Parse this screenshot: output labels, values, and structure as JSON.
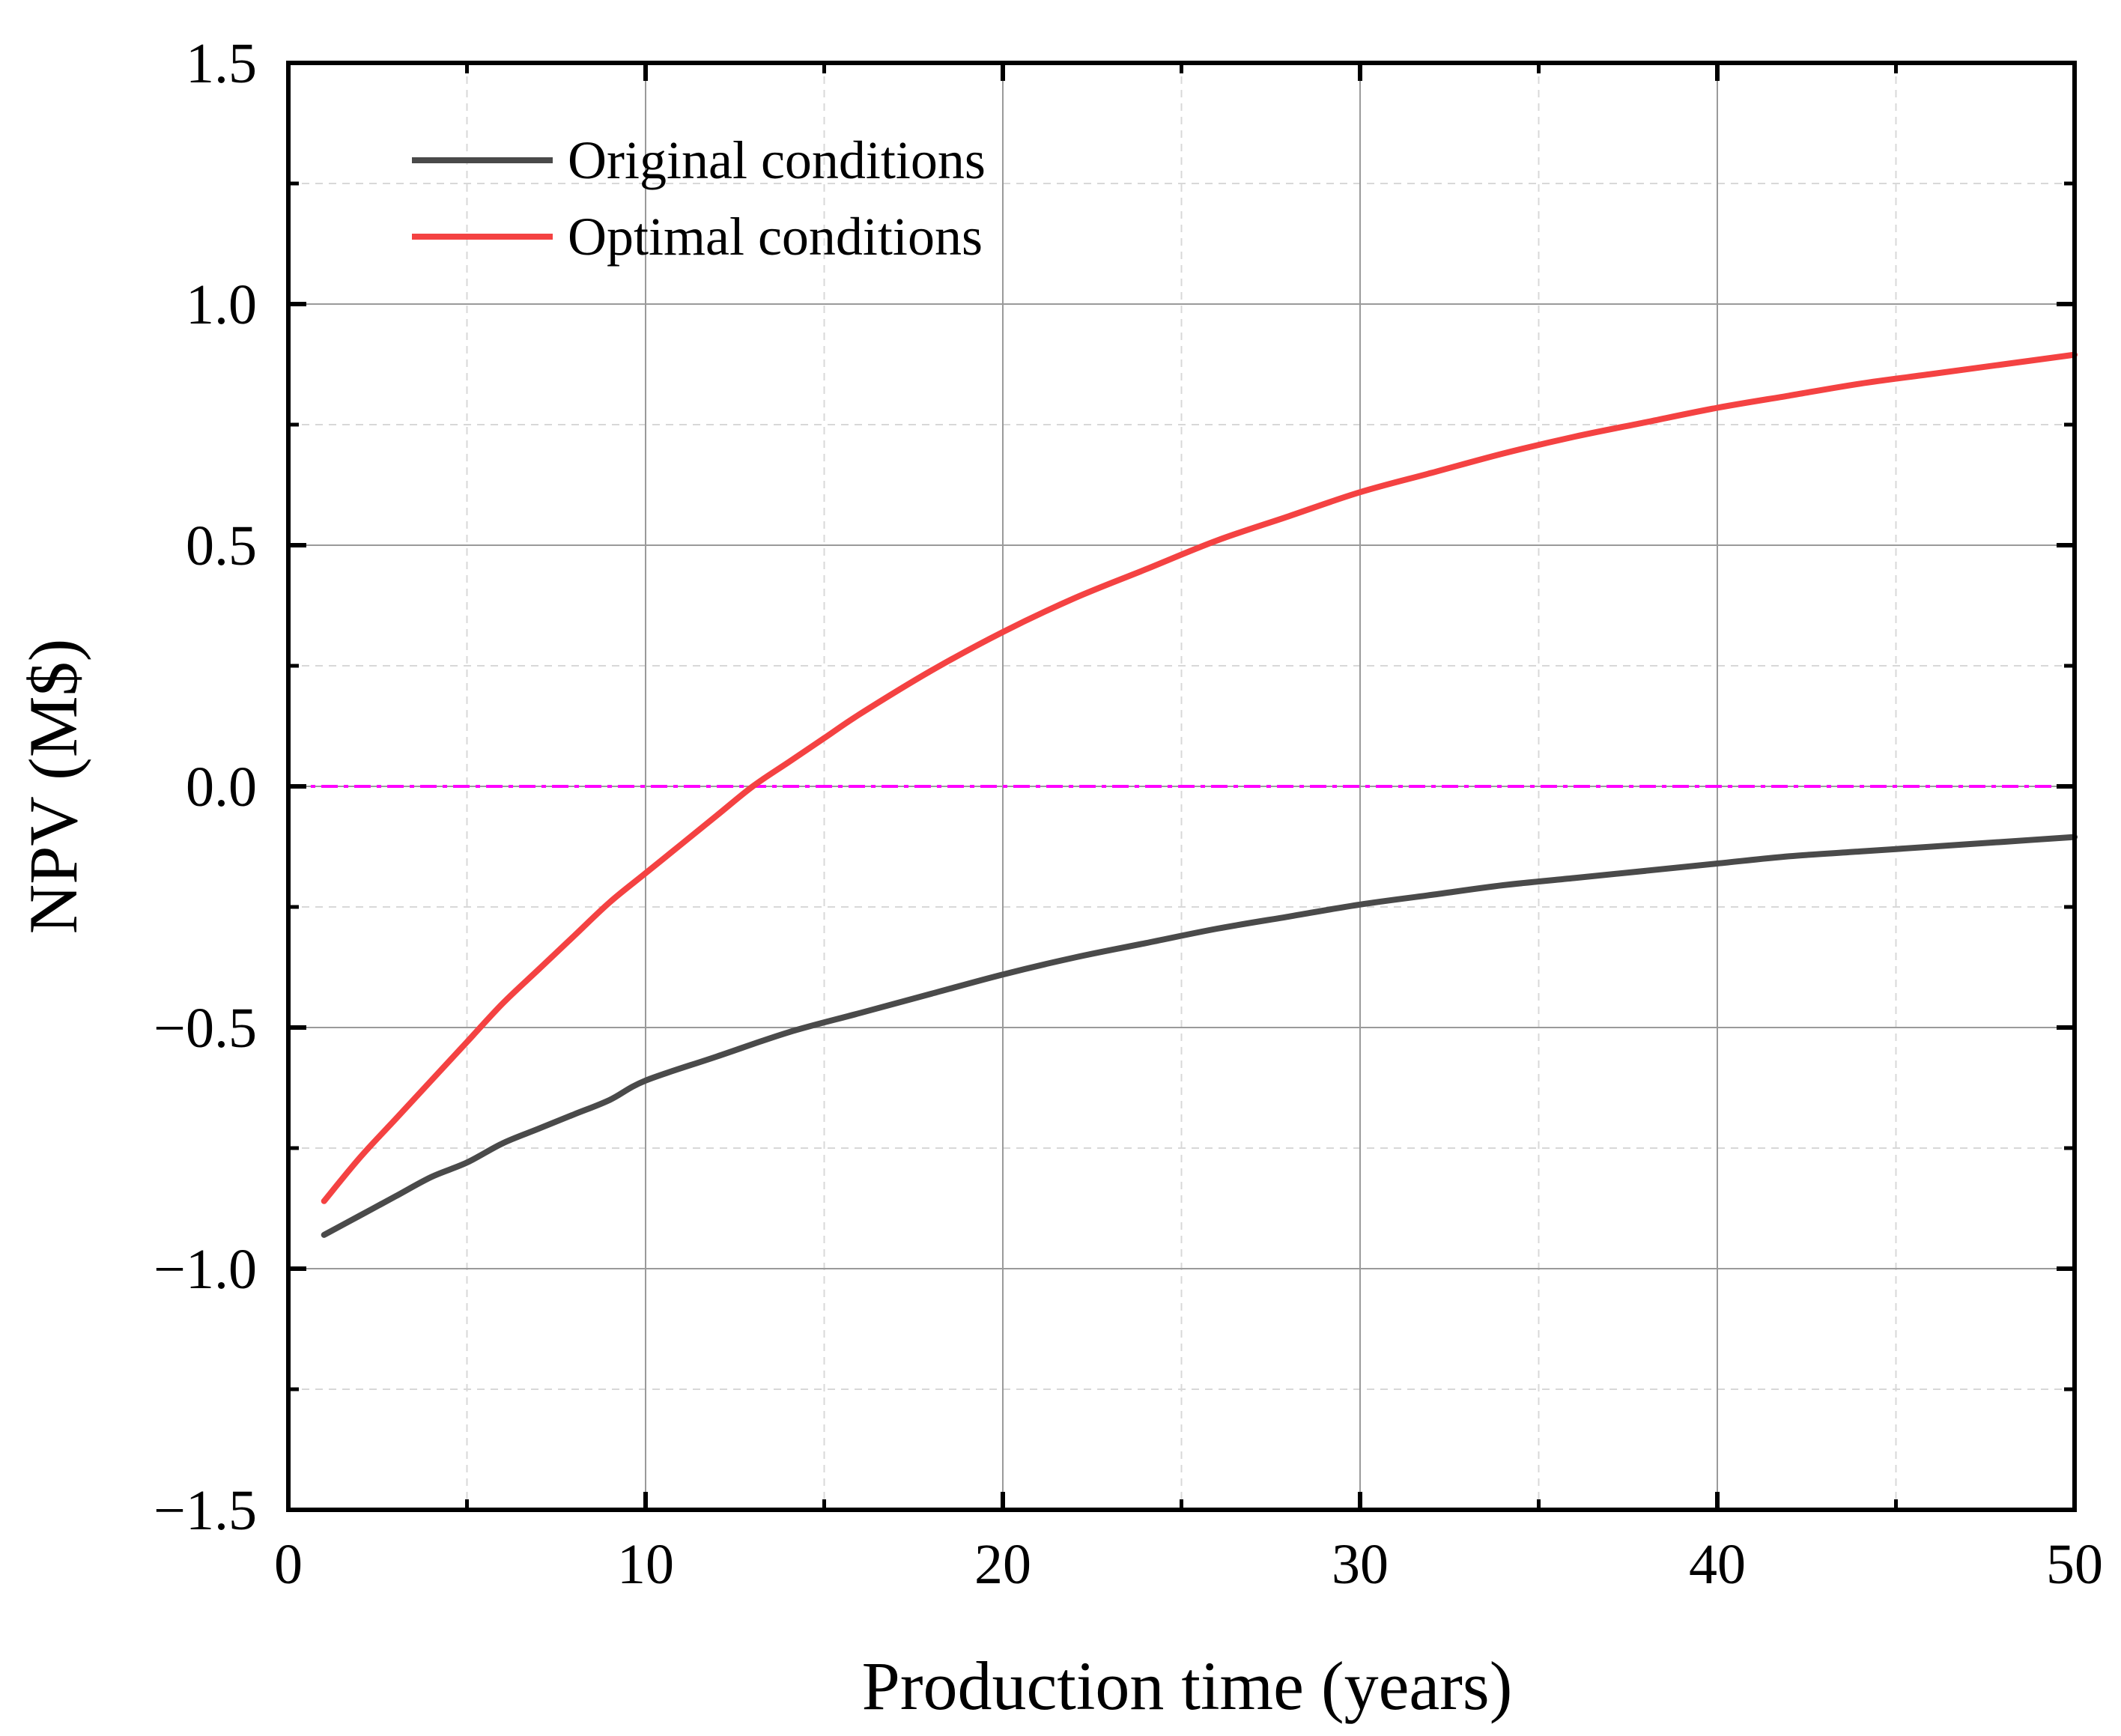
{
  "chart_data": {
    "type": "line",
    "xlabel": "Production time (years)",
    "ylabel": "NPV (M$)",
    "xlim": [
      0,
      50
    ],
    "ylim": [
      -1.5,
      1.5
    ],
    "x_ticks": [
      "0",
      "10",
      "20",
      "30",
      "40",
      "50"
    ],
    "y_ticks": [
      "−1.5",
      "−1.0",
      "−0.5",
      "0.0",
      "0.5",
      "1.0",
      "1.5"
    ],
    "grid": true,
    "legend_position": "top-left",
    "reference_line": {
      "y": 0.0,
      "color": "#ff00ff",
      "style": "dash-dot"
    },
    "series": [
      {
        "name": "Original conditions",
        "color": "#4a4a4a",
        "x": [
          1,
          2,
          3,
          4,
          5,
          6,
          7,
          8,
          9,
          10,
          12,
          14,
          16,
          18,
          20,
          22,
          24,
          26,
          28,
          30,
          32,
          34,
          36,
          38,
          40,
          42,
          44,
          46,
          48,
          50
        ],
        "y": [
          -0.93,
          -0.89,
          -0.85,
          -0.81,
          -0.78,
          -0.74,
          -0.71,
          -0.68,
          -0.65,
          -0.61,
          -0.56,
          -0.51,
          -0.47,
          -0.43,
          -0.39,
          -0.355,
          -0.325,
          -0.295,
          -0.27,
          -0.245,
          -0.225,
          -0.205,
          -0.19,
          -0.175,
          -0.16,
          -0.145,
          -0.135,
          -0.125,
          -0.115,
          -0.105
        ]
      },
      {
        "name": "Optimal conditions",
        "color": "#f44242",
        "x": [
          1,
          2,
          3,
          4,
          5,
          6,
          7,
          8,
          9,
          10,
          11,
          12,
          13,
          14,
          15,
          16,
          18,
          20,
          22,
          24,
          26,
          28,
          30,
          32,
          34,
          36,
          38,
          40,
          42,
          44,
          46,
          48,
          50
        ],
        "y": [
          -0.86,
          -0.77,
          -0.69,
          -0.61,
          -0.53,
          -0.45,
          -0.38,
          -0.31,
          -0.24,
          -0.18,
          -0.12,
          -0.06,
          0.0,
          0.05,
          0.1,
          0.15,
          0.24,
          0.32,
          0.39,
          0.45,
          0.51,
          0.56,
          0.61,
          0.65,
          0.69,
          0.725,
          0.755,
          0.785,
          0.81,
          0.835,
          0.855,
          0.875,
          0.895
        ]
      }
    ]
  }
}
